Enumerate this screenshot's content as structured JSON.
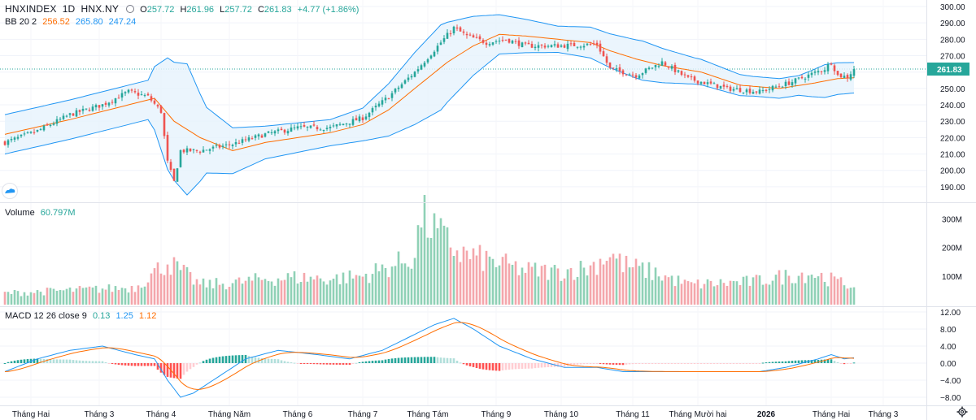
{
  "header": {
    "symbol": "HNXINDEX",
    "interval": "1D",
    "exchange": "HNX.NY",
    "open_label": "O",
    "open": "257.72",
    "high_label": "H",
    "high": "261.96",
    "low_label": "L",
    "low": "257.72",
    "close_label": "C",
    "close": "261.83",
    "change": "+4.77 (+1.86%)"
  },
  "bb_legend": {
    "label": "BB 20 2",
    "basis": "256.52",
    "upper": "265.80",
    "lower": "247.24"
  },
  "volume_legend": {
    "label": "Volume",
    "value": "60.797M"
  },
  "macd_legend": {
    "label": "MACD 12 26 close 9",
    "hist": "0.13",
    "macd": "1.25",
    "signal": "1.12"
  },
  "colors": {
    "up": "#26a69a",
    "down": "#ef5350",
    "up_vol": "#8fd1b6",
    "down_vol": "#f4a6ab",
    "bb_band": "#2196f3",
    "bb_basis": "#ff6d00",
    "bb_fill": "#e6f2fd",
    "macd_line": "#2196f3",
    "signal_line": "#ff6d00",
    "price_line": "#26a69a"
  },
  "chart_data": {
    "type": "candlestick",
    "price_axis": {
      "min": 185,
      "max": 300,
      "ticks": [
        190,
        200,
        210,
        220,
        230,
        240,
        250,
        260,
        270,
        280,
        290,
        300
      ]
    },
    "last_price": 261.83,
    "volume_axis": {
      "ticks_m": [
        100,
        200,
        300
      ],
      "tick_labels": [
        "100M",
        "200M",
        "300M"
      ]
    },
    "macd_axis": {
      "ticks": [
        12,
        8,
        4,
        0,
        -4,
        -8
      ],
      "tick_labels": [
        "12.00",
        "8.00",
        "4.00",
        "0.00",
        "−4.00",
        "−8.00"
      ]
    },
    "x_labels": [
      "Tháng Hai",
      "Tháng 3",
      "Tháng 4",
      "Tháng Năm",
      "Tháng 6",
      "Tháng 7",
      "Tháng Tám",
      "Tháng 9",
      "Tháng 10",
      "Tháng 11",
      "Tháng Mười hai",
      "2026",
      "Tháng Hai",
      "Tháng 3"
    ],
    "x_label_bold": [
      false,
      false,
      false,
      false,
      false,
      false,
      false,
      false,
      false,
      false,
      false,
      true,
      false,
      false
    ],
    "x_label_bar_index": [
      8,
      29,
      48,
      69,
      90,
      110,
      130,
      151,
      171,
      193,
      213,
      234,
      254,
      270
    ],
    "close_keypoints": [
      [
        0,
        217
      ],
      [
        10,
        224
      ],
      [
        20,
        234
      ],
      [
        30,
        240
      ],
      [
        38,
        248
      ],
      [
        44,
        245
      ],
      [
        48,
        236
      ],
      [
        50,
        205
      ],
      [
        52,
        193
      ],
      [
        54,
        212
      ],
      [
        60,
        212
      ],
      [
        70,
        216
      ],
      [
        80,
        222
      ],
      [
        90,
        226
      ],
      [
        100,
        226
      ],
      [
        110,
        232
      ],
      [
        118,
        245
      ],
      [
        126,
        260
      ],
      [
        134,
        278
      ],
      [
        138,
        287
      ],
      [
        142,
        282
      ],
      [
        148,
        278
      ],
      [
        154,
        280
      ],
      [
        160,
        276
      ],
      [
        170,
        276
      ],
      [
        182,
        277
      ],
      [
        186,
        262
      ],
      [
        194,
        258
      ],
      [
        202,
        266
      ],
      [
        210,
        256
      ],
      [
        222,
        250
      ],
      [
        232,
        248
      ],
      [
        242,
        254
      ],
      [
        252,
        262
      ],
      [
        254,
        266
      ],
      [
        256,
        258
      ],
      [
        259,
        257
      ],
      [
        261,
        261.83
      ]
    ],
    "volume_keypoints_m": [
      [
        0,
        40
      ],
      [
        20,
        50
      ],
      [
        40,
        60
      ],
      [
        50,
        150
      ],
      [
        60,
        70
      ],
      [
        70,
        75
      ],
      [
        80,
        90
      ],
      [
        90,
        95
      ],
      [
        100,
        90
      ],
      [
        110,
        100
      ],
      [
        120,
        140
      ],
      [
        126,
        170
      ],
      [
        128,
        310
      ],
      [
        132,
        260
      ],
      [
        140,
        180
      ],
      [
        150,
        150
      ],
      [
        160,
        120
      ],
      [
        170,
        115
      ],
      [
        180,
        130
      ],
      [
        186,
        180
      ],
      [
        190,
        140
      ],
      [
        200,
        110
      ],
      [
        210,
        70
      ],
      [
        220,
        75
      ],
      [
        230,
        80
      ],
      [
        240,
        100
      ],
      [
        248,
        110
      ],
      [
        256,
        80
      ],
      [
        261,
        61
      ]
    ],
    "bb_basis_keypoints": [
      [
        0,
        222
      ],
      [
        20,
        231
      ],
      [
        40,
        241
      ],
      [
        46,
        244
      ],
      [
        52,
        230
      ],
      [
        60,
        220
      ],
      [
        70,
        212
      ],
      [
        80,
        217
      ],
      [
        100,
        223
      ],
      [
        110,
        228
      ],
      [
        118,
        237
      ],
      [
        126,
        250
      ],
      [
        136,
        266
      ],
      [
        144,
        276
      ],
      [
        152,
        283
      ],
      [
        160,
        282
      ],
      [
        170,
        280
      ],
      [
        180,
        278
      ],
      [
        186,
        273
      ],
      [
        194,
        268
      ],
      [
        202,
        264
      ],
      [
        214,
        260
      ],
      [
        226,
        252
      ],
      [
        238,
        250
      ],
      [
        248,
        253
      ],
      [
        256,
        256
      ],
      [
        261,
        256.52
      ]
    ],
    "bb_width_keypoints": [
      [
        0,
        12
      ],
      [
        30,
        12
      ],
      [
        44,
        12
      ],
      [
        50,
        34
      ],
      [
        56,
        40
      ],
      [
        62,
        20
      ],
      [
        70,
        14
      ],
      [
        80,
        10
      ],
      [
        100,
        8
      ],
      [
        110,
        10
      ],
      [
        118,
        16
      ],
      [
        126,
        22
      ],
      [
        134,
        26
      ],
      [
        144,
        18
      ],
      [
        152,
        12
      ],
      [
        170,
        8
      ],
      [
        184,
        10
      ],
      [
        196,
        12
      ],
      [
        212,
        8
      ],
      [
        230,
        6
      ],
      [
        244,
        6
      ],
      [
        252,
        10
      ],
      [
        261,
        9.3
      ]
    ],
    "macd_hist_note": "0.13",
    "macd_keypoints": [
      [
        0,
        -2
      ],
      [
        10,
        1
      ],
      [
        20,
        3
      ],
      [
        30,
        4
      ],
      [
        40,
        2
      ],
      [
        46,
        1
      ],
      [
        50,
        -4
      ],
      [
        54,
        -8
      ],
      [
        58,
        -7
      ],
      [
        66,
        -3
      ],
      [
        74,
        1
      ],
      [
        84,
        3
      ],
      [
        96,
        2
      ],
      [
        106,
        1
      ],
      [
        116,
        3
      ],
      [
        124,
        6
      ],
      [
        132,
        9
      ],
      [
        138,
        10.5
      ],
      [
        144,
        8
      ],
      [
        152,
        4
      ],
      [
        162,
        1
      ],
      [
        172,
        -1
      ],
      [
        182,
        -1
      ],
      [
        190,
        -2
      ],
      [
        200,
        -2
      ],
      [
        210,
        -2
      ],
      [
        222,
        -2
      ],
      [
        232,
        -2
      ],
      [
        240,
        -1
      ],
      [
        250,
        1
      ],
      [
        254,
        2
      ],
      [
        258,
        1
      ],
      [
        261,
        1.25
      ]
    ]
  }
}
